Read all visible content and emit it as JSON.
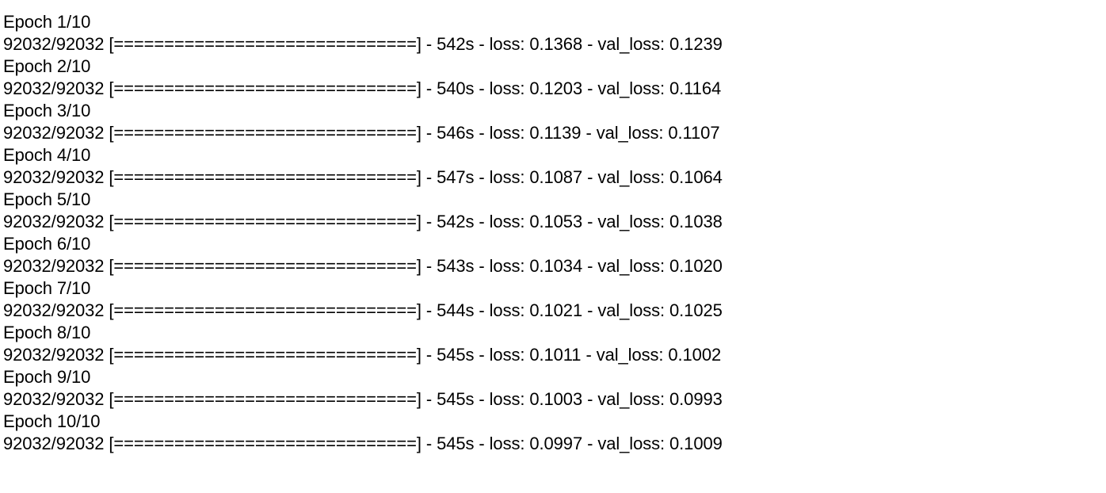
{
  "log": {
    "epochs": [
      {
        "header": "Epoch 1/10",
        "progress": "92032/92032 [==============================] - 542s - loss: 0.1368 - val_loss: 0.1239"
      },
      {
        "header": "Epoch 2/10",
        "progress": "92032/92032 [==============================] - 540s - loss: 0.1203 - val_loss: 0.1164"
      },
      {
        "header": "Epoch 3/10",
        "progress": "92032/92032 [==============================] - 546s - loss: 0.1139 - val_loss: 0.1107"
      },
      {
        "header": "Epoch 4/10",
        "progress": "92032/92032 [==============================] - 547s - loss: 0.1087 - val_loss: 0.1064"
      },
      {
        "header": "Epoch 5/10",
        "progress": "92032/92032 [==============================] - 542s - loss: 0.1053 - val_loss: 0.1038"
      },
      {
        "header": "Epoch 6/10",
        "progress": "92032/92032 [==============================] - 543s - loss: 0.1034 - val_loss: 0.1020"
      },
      {
        "header": "Epoch 7/10",
        "progress": "92032/92032 [==============================] - 544s - loss: 0.1021 - val_loss: 0.1025"
      },
      {
        "header": "Epoch 8/10",
        "progress": "92032/92032 [==============================] - 545s - loss: 0.1011 - val_loss: 0.1002"
      },
      {
        "header": "Epoch 9/10",
        "progress": "92032/92032 [==============================] - 545s - loss: 0.1003 - val_loss: 0.0993"
      },
      {
        "header": "Epoch 10/10",
        "progress": "92032/92032 [==============================] - 545s - loss: 0.0997 - val_loss: 0.1009"
      }
    ]
  }
}
